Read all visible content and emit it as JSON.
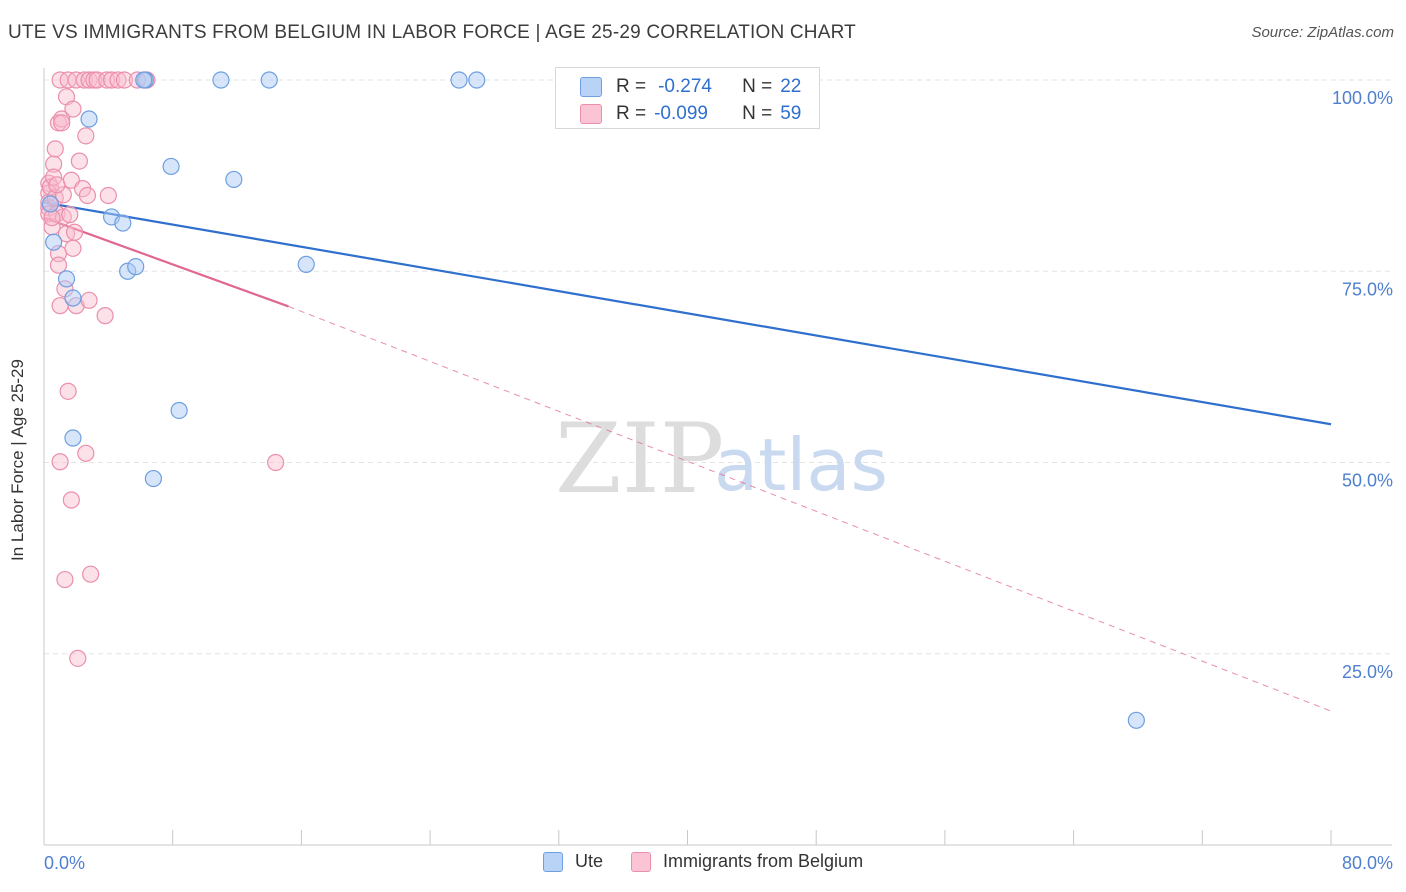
{
  "title": "UTE VS IMMIGRANTS FROM BELGIUM IN LABOR FORCE | AGE 25-29 CORRELATION CHART",
  "source": "Source: ZipAtlas.com",
  "watermark": {
    "zip": "ZIP",
    "atlas": "atlas"
  },
  "colors": {
    "ute_fill": "#aecbf5",
    "ute_stroke": "#6e9fe0",
    "ute_line": "#2f6fce",
    "bel_fill": "#f9bccf",
    "bel_stroke": "#eb8fac",
    "bel_line": "#e06793",
    "grid": "#e3e3e3",
    "axis": "#c8c8c8",
    "tick_label": "#4f7fcf"
  },
  "stats": {
    "r_label": "R =",
    "n_label": "N =",
    "ute": {
      "r": "-0.274",
      "n": "22"
    },
    "belgium": {
      "r": "-0.099",
      "n": "59"
    }
  },
  "legend": {
    "ute": "Ute",
    "belgium": "Immigrants from Belgium"
  },
  "chart_data": {
    "type": "scatter",
    "title": "UTE VS IMMIGRANTS FROM BELGIUM IN LABOR FORCE | AGE 25-29 CORRELATION CHART",
    "xlabel": "",
    "ylabel": "In Labor Force | Age 25-29",
    "xlim": [
      0,
      80
    ],
    "ylim": [
      0,
      105
    ],
    "x_tick_labels": {
      "min": "0.0%",
      "max": "80.0%"
    },
    "y_ticks": [
      100,
      75,
      50,
      25
    ],
    "y_tick_labels": [
      "100.0%",
      "75.0%",
      "50.0%",
      "25.0%"
    ],
    "grid": true,
    "series": [
      {
        "name": "Ute",
        "r": -0.274,
        "n": 22,
        "points": [
          [
            0.6,
            78.8
          ],
          [
            1.4,
            74.0
          ],
          [
            1.8,
            71.5
          ],
          [
            1.8,
            53.2
          ],
          [
            2.8,
            94.9
          ],
          [
            4.2,
            82.1
          ],
          [
            4.9,
            81.3
          ],
          [
            5.2,
            75.0
          ],
          [
            5.7,
            75.6
          ],
          [
            6.3,
            100.0
          ],
          [
            6.8,
            47.9
          ],
          [
            7.9,
            88.7
          ],
          [
            8.4,
            56.8
          ],
          [
            11.0,
            100.0
          ],
          [
            11.8,
            87.0
          ],
          [
            14.0,
            100.0
          ],
          [
            16.3,
            75.9
          ],
          [
            25.8,
            100.0
          ],
          [
            26.9,
            100.0
          ],
          [
            67.9,
            16.3
          ],
          [
            0.4,
            83.8
          ],
          [
            6.2,
            100.0
          ]
        ],
        "trend": {
          "x": [
            0,
            80
          ],
          "y": [
            84.0,
            55.0
          ],
          "style": "solid"
        }
      },
      {
        "name": "Immigrants from Belgium",
        "r": -0.099,
        "n": 59,
        "points": [
          [
            0.3,
            86.5
          ],
          [
            0.3,
            85.2
          ],
          [
            0.3,
            84.0
          ],
          [
            0.3,
            83.3
          ],
          [
            0.3,
            82.5
          ],
          [
            0.4,
            86.0
          ],
          [
            0.5,
            80.8
          ],
          [
            0.6,
            89.0
          ],
          [
            0.6,
            87.3
          ],
          [
            0.7,
            91.0
          ],
          [
            0.7,
            84.6
          ],
          [
            0.8,
            82.5
          ],
          [
            0.9,
            77.3
          ],
          [
            0.9,
            75.8
          ],
          [
            0.9,
            94.4
          ],
          [
            1.0,
            70.5
          ],
          [
            1.0,
            50.1
          ],
          [
            1.0,
            100.0
          ],
          [
            1.1,
            94.9
          ],
          [
            1.1,
            94.4
          ],
          [
            1.2,
            85.0
          ],
          [
            1.2,
            82.1
          ],
          [
            1.3,
            34.7
          ],
          [
            1.3,
            72.7
          ],
          [
            1.4,
            79.9
          ],
          [
            1.4,
            97.8
          ],
          [
            1.5,
            59.3
          ],
          [
            1.5,
            100.0
          ],
          [
            1.7,
            86.9
          ],
          [
            1.7,
            45.1
          ],
          [
            1.8,
            96.2
          ],
          [
            1.8,
            78.0
          ],
          [
            1.9,
            80.1
          ],
          [
            2.0,
            70.5
          ],
          [
            2.0,
            100.0
          ],
          [
            2.1,
            24.4
          ],
          [
            2.2,
            89.4
          ],
          [
            2.4,
            85.8
          ],
          [
            2.5,
            100.0
          ],
          [
            2.6,
            51.2
          ],
          [
            2.6,
            92.7
          ],
          [
            2.7,
            84.9
          ],
          [
            2.8,
            100.0
          ],
          [
            2.8,
            71.2
          ],
          [
            2.9,
            35.4
          ],
          [
            3.1,
            100.0
          ],
          [
            3.3,
            100.0
          ],
          [
            3.8,
            69.2
          ],
          [
            3.9,
            100.0
          ],
          [
            4.0,
            84.9
          ],
          [
            4.2,
            100.0
          ],
          [
            4.6,
            100.0
          ],
          [
            5.0,
            100.0
          ],
          [
            5.8,
            100.0
          ],
          [
            6.4,
            100.0
          ],
          [
            14.4,
            50.0
          ],
          [
            0.5,
            82.0
          ],
          [
            1.6,
            82.4
          ],
          [
            0.8,
            86.3
          ]
        ],
        "trend": {
          "x": [
            0,
            15.2
          ],
          "y": [
            82.0,
            70.4
          ],
          "style": "solid",
          "extension": {
            "x": [
              15.2,
              80
            ],
            "y": [
              70.4,
              17.5
            ],
            "style": "dashed"
          }
        }
      }
    ]
  }
}
